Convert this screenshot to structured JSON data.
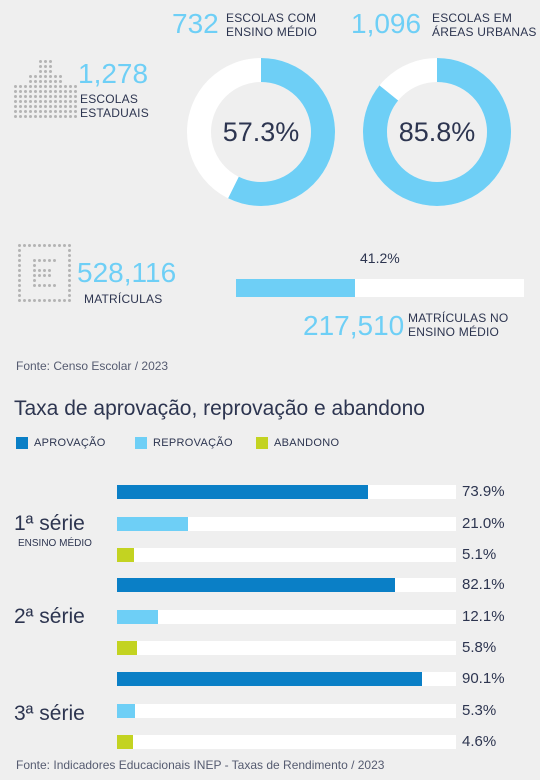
{
  "colors": {
    "aprovacao": "#0a7fc6",
    "reprovacao": "#6ecff6",
    "abandono": "#c3d321",
    "donut_track": "#ffffff",
    "text": "#2d3550"
  },
  "stats": {
    "escolas_estaduais": {
      "value": "1,278",
      "caption_1": "ESCOLAS",
      "caption_2": "ESTADUAIS",
      "icon": "school-building-icon"
    },
    "ensino_medio": {
      "value": "732",
      "caption_1": "ESCOLAS COM",
      "caption_2": "ENSINO MÉDIO",
      "percent_label": "57.3%",
      "fraction": 0.573
    },
    "areas_urbanas": {
      "value": "1,096",
      "caption_1": "ESCOLAS EM",
      "caption_2": "ÁREAS URBANAS",
      "percent_label": "85.8%",
      "fraction": 0.858
    },
    "matriculas": {
      "value": "528,116",
      "caption": "MATRÍCULAS",
      "icon": "enrollment-icon"
    },
    "matriculas_ensino_medio": {
      "value": "217,510",
      "caption_1": "MATRÍCULAS NO",
      "caption_2": "ENSINO MÉDIO",
      "percent_label": "41.2%",
      "fraction": 0.412
    },
    "source": "Fonte: Censo Escolar / 2023"
  },
  "chart_data": {
    "type": "bar",
    "orientation": "horizontal",
    "title": "Taxa de aprovação, reprovação e abandono",
    "xlim": [
      0,
      100
    ],
    "legend_placement": "top-left",
    "categories": [
      "1ª série",
      "2ª série",
      "3ª série"
    ],
    "category_sublabels": [
      "ENSINO MÉDIO",
      "",
      ""
    ],
    "series": [
      {
        "name": "APROVAÇÃO",
        "values": [
          73.9,
          82.1,
          90.1
        ],
        "labels": [
          "73.9%",
          "82.1%",
          "90.1%"
        ]
      },
      {
        "name": "REPROVAÇÃO",
        "values": [
          21.0,
          12.1,
          5.3
        ],
        "labels": [
          "21.0%",
          "12.1%",
          "5.3%"
        ]
      },
      {
        "name": "ABANDONO",
        "values": [
          5.1,
          5.8,
          4.6
        ],
        "labels": [
          "5.1%",
          "5.8%",
          "4.6%"
        ]
      }
    ],
    "source": "Fonte: Indicadores Educacionais INEP - Taxas de Rendimento / 2023"
  }
}
